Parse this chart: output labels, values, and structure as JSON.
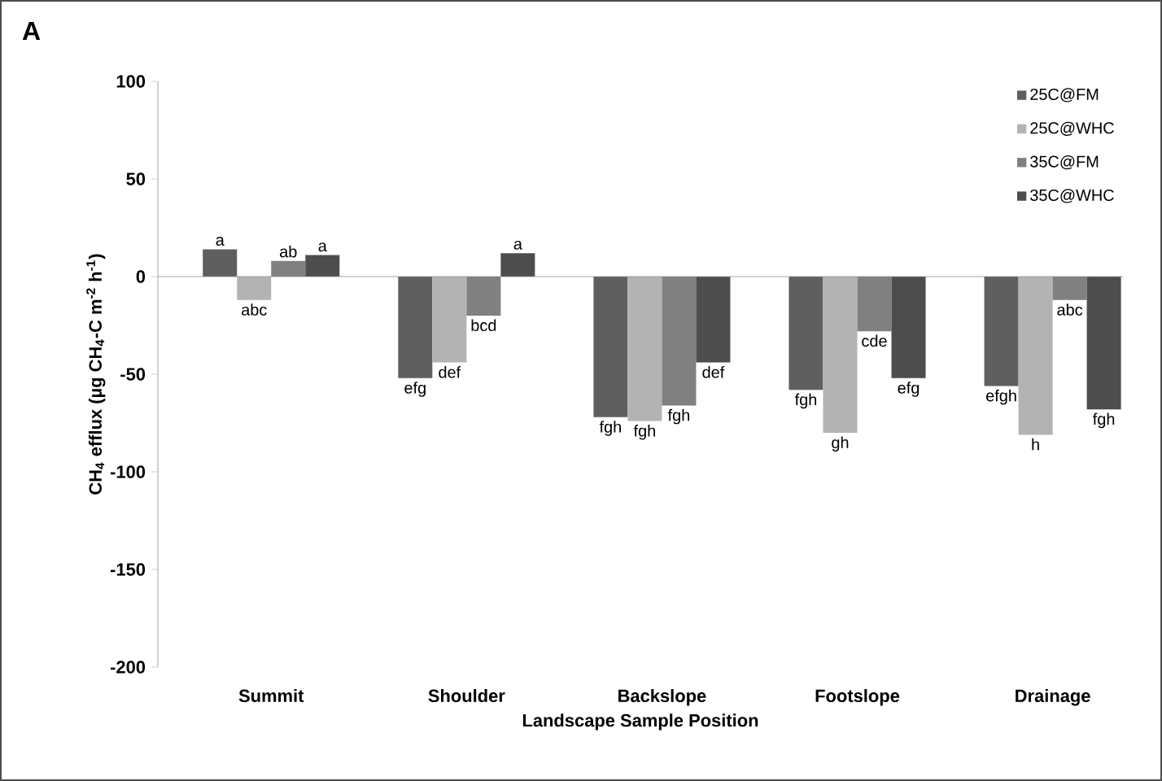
{
  "chart_data": {
    "type": "bar",
    "xlabel": "Landscape Sample Position",
    "ylabel": "CH$_{4}$ efflux (µg CH$_{4}$-C m$^{-2}$ h$^{-1}$)",
    "annotations": [
      "A"
    ],
    "categories": [
      "Summit",
      "Shoulder",
      "Backslope",
      "Footslope",
      "Drainage"
    ],
    "series": [
      {
        "name": "25C@FM",
        "color": "#5f5f5f",
        "values": [
          14,
          -52,
          -72,
          -58,
          -56
        ],
        "value_labels": [
          "a",
          "efg",
          "fgh",
          "fgh",
          "efgh"
        ]
      },
      {
        "name": "25C@WHC",
        "color": "#b3b3b3",
        "values": [
          -12,
          -44,
          -74,
          -80,
          -81
        ],
        "value_labels": [
          "abc",
          "def",
          "fgh",
          "gh",
          "h"
        ]
      },
      {
        "name": "35C@FM",
        "color": "#808080",
        "values": [
          8,
          -20,
          -66,
          -28,
          -12
        ],
        "value_labels": [
          "ab",
          "bcd",
          "fgh",
          "cde",
          "abc"
        ]
      },
      {
        "name": "35C@WHC",
        "color": "#4d4d4d",
        "values": [
          11,
          12,
          -44,
          -52,
          -68
        ],
        "value_labels": [
          "a",
          "a",
          "def",
          "efg",
          "fgh"
        ]
      }
    ],
    "ylim": [
      -200,
      100
    ],
    "yticks": [
      -200,
      -150,
      -100,
      -50,
      0,
      50,
      100
    ],
    "legend": "top right"
  }
}
